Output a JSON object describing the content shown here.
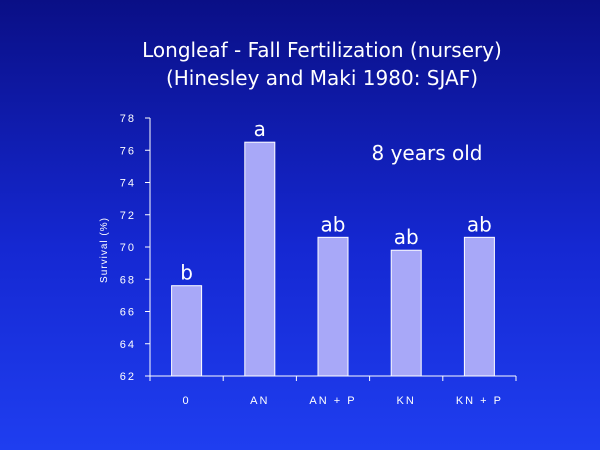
{
  "chart_data": {
    "type": "bar",
    "title_line1": "Longleaf - Fall Fertilization (nursery)",
    "title_line2": "(Hinesley and Maki 1980: SJAF)",
    "ylabel": "Survival (%)",
    "xlabel": "",
    "annotation": "8 years old",
    "categories": [
      "0",
      "AN",
      "AN + P",
      "KN",
      "KN + P"
    ],
    "values": [
      67.6,
      76.5,
      70.6,
      69.8,
      70.6
    ],
    "bar_labels": [
      "b",
      "a",
      "ab",
      "ab",
      "ab"
    ],
    "ylim": [
      62,
      78
    ],
    "yticks": [
      62,
      64,
      66,
      68,
      70,
      72,
      74,
      76,
      78
    ],
    "grid": false,
    "legend": "none",
    "colors": {
      "bar": "#a8a8f8",
      "bar_edge": "#ffffff",
      "axis": "#ffffff"
    }
  }
}
